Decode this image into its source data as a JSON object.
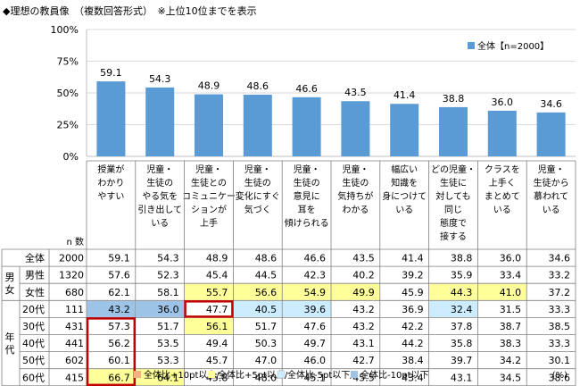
{
  "title": "◆理想の教員像　（複数回答形式）　※上位10位までを表示",
  "legend_label": "全体【n=2000】",
  "ncount_label": "n 数",
  "percent_label": "(%)",
  "colors": {
    "bar": "#5b9bd5",
    "hi10": "#f4b183",
    "hi5": "#ffff99",
    "lo5": "#ccecff",
    "lo10": "#9dc3e6",
    "grid": "#d9d9d9",
    "highlight_border": "#c00000"
  },
  "chart_data": {
    "type": "bar",
    "categories": [
      "授業が\nわかり\nやすい",
      "児童・\n生徒の\nやる気を\n引き出して\nいる",
      "児童・\n生徒との\nコミュニケー\nションが\n上手",
      "児童・\n生徒の\n変化にすぐ\n気づく",
      "児童・\n生徒の\n意見に\n耳を\n傾けられる",
      "児童・\n生徒の\n気持ちが\nわかる",
      "幅広い\n知識を\n身につけて\nいる",
      "どの児童・\n生徒に\n対しても\n同じ\n態度で\n接する",
      "クラスを\n上手く\nまとめて\nいる",
      "児童・\n生徒から\n慕われて\nいる"
    ],
    "series": [
      {
        "name": "全体【n=2000】",
        "values": [
          59.1,
          54.3,
          48.9,
          48.6,
          46.6,
          43.5,
          41.4,
          38.8,
          36.0,
          34.6
        ]
      }
    ],
    "ylim": [
      0,
      100
    ],
    "yticks": [
      "0%",
      "25%",
      "50%",
      "75%",
      "100%"
    ],
    "ytick_values": [
      0,
      25,
      50,
      75,
      100
    ],
    "legend_position": "top-right",
    "grid": true
  },
  "table": {
    "groups": [
      {
        "label": "",
        "rows": [
          {
            "name": "全体",
            "n": "2000",
            "values": [
              "59.1",
              "54.3",
              "48.9",
              "48.6",
              "46.6",
              "43.5",
              "41.4",
              "38.8",
              "36.0",
              "34.6"
            ],
            "hl": [
              0,
              0,
              0,
              0,
              0,
              0,
              0,
              0,
              0,
              0
            ]
          }
        ]
      },
      {
        "label": "男\n女",
        "rows": [
          {
            "name": "男性",
            "n": "1320",
            "values": [
              "57.6",
              "52.3",
              "45.4",
              "44.5",
              "42.3",
              "40.2",
              "39.2",
              "35.9",
              "33.4",
              "33.2"
            ],
            "hl": [
              0,
              0,
              0,
              0,
              0,
              0,
              0,
              0,
              0,
              0
            ]
          },
          {
            "name": "女性",
            "n": "680",
            "values": [
              "62.1",
              "58.1",
              "55.7",
              "56.6",
              "54.9",
              "49.9",
              "45.9",
              "44.3",
              "41.0",
              "37.2"
            ],
            "hl": [
              0,
              0,
              2,
              2,
              2,
              2,
              0,
              2,
              2,
              0
            ]
          }
        ]
      },
      {
        "label": "年\n代",
        "rows": [
          {
            "name": "20代",
            "n": "111",
            "values": [
              "43.2",
              "36.0",
              "47.7",
              "40.5",
              "39.6",
              "43.2",
              "36.9",
              "32.4",
              "31.5",
              "33.3"
            ],
            "hl": [
              -2,
              -2,
              0,
              -1,
              -1,
              0,
              0,
              -1,
              0,
              0
            ]
          },
          {
            "name": "30代",
            "n": "431",
            "values": [
              "57.3",
              "51.7",
              "56.1",
              "51.7",
              "47.6",
              "43.2",
              "42.2",
              "37.8",
              "38.7",
              "38.5"
            ],
            "hl": [
              0,
              0,
              2,
              0,
              0,
              0,
              0,
              0,
              0,
              0
            ]
          },
          {
            "name": "40代",
            "n": "441",
            "values": [
              "56.2",
              "53.5",
              "49.4",
              "50.3",
              "49.7",
              "43.1",
              "44.2",
              "35.8",
              "38.3",
              "33.3"
            ],
            "hl": [
              0,
              0,
              0,
              0,
              0,
              0,
              0,
              0,
              0,
              0
            ]
          },
          {
            "name": "50代",
            "n": "602",
            "values": [
              "60.1",
              "53.3",
              "45.7",
              "47.0",
              "46.0",
              "42.7",
              "38.4",
              "39.7",
              "34.2",
              "30.1"
            ],
            "hl": [
              0,
              0,
              0,
              0,
              0,
              0,
              0,
              0,
              0,
              0
            ]
          },
          {
            "name": "60代",
            "n": "415",
            "values": [
              "66.7",
              "64.1",
              "45.8",
              "48.0",
              "45.1",
              "45.5",
              "43.4",
              "43.1",
              "34.5",
              "38.6"
            ],
            "hl": [
              2,
              2,
              0,
              0,
              0,
              0,
              0,
              0,
              0,
              0
            ]
          }
        ]
      }
    ]
  },
  "footer_legend": [
    {
      "label": "全体比+10pt以上/",
      "color_key": "hi10"
    },
    {
      "label": "全体比+5pt以上/",
      "color_key": "hi5"
    },
    {
      "label": "全体比-5pt以下/",
      "color_key": "lo5"
    },
    {
      "label": "全体比-10pt以下",
      "color_key": "lo10"
    }
  ]
}
